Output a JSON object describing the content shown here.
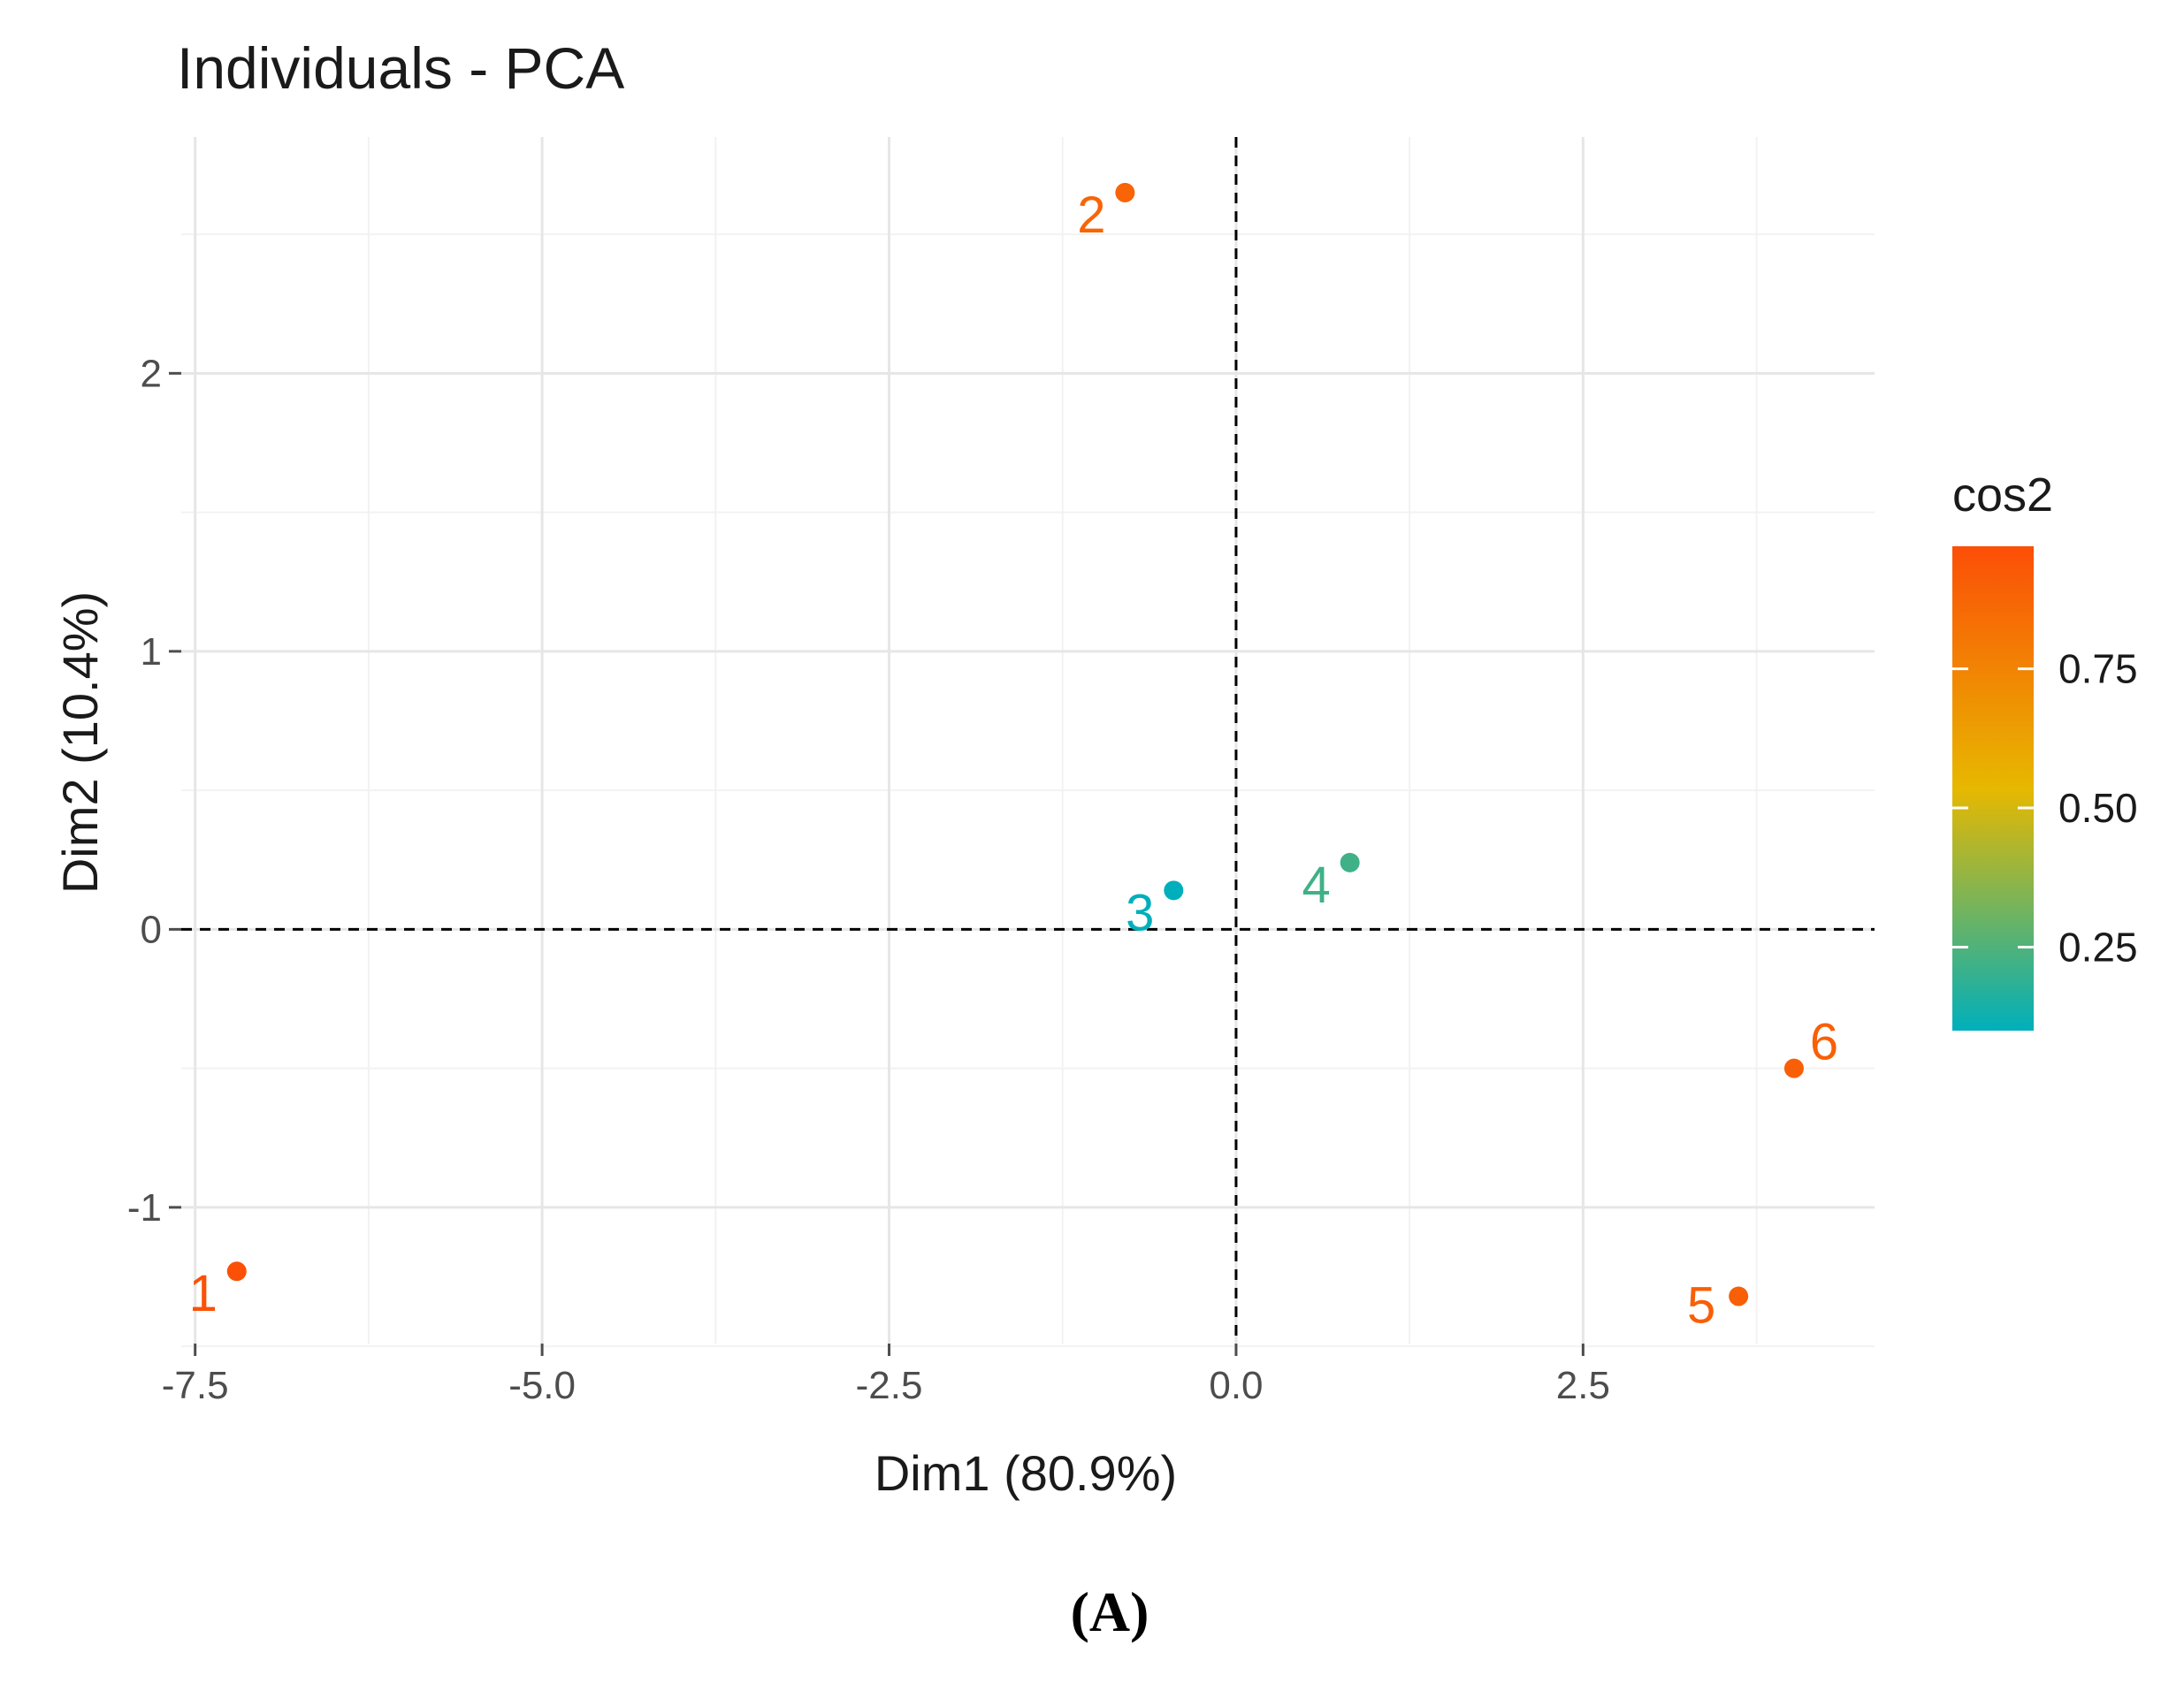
{
  "caption": "(A)",
  "chart_data": {
    "type": "scatter",
    "title": "Individuals - PCA",
    "xlabel": "Dim1 (80.9%)",
    "ylabel": "Dim2 (10.4%)",
    "xlim": [
      -7.6,
      4.6
    ],
    "ylim": [
      -1.49,
      2.85
    ],
    "x_ticks": [
      -7.5,
      -5.0,
      -2.5,
      0.0,
      2.5
    ],
    "x_tick_labels": [
      "-7.5",
      "-5.0",
      "-2.5",
      "0.0",
      "2.5"
    ],
    "y_ticks": [
      -1,
      0,
      1,
      2
    ],
    "y_tick_labels": [
      "-1",
      "0",
      "1",
      "2"
    ],
    "grid": true,
    "reference_lines": {
      "x": 0,
      "y": 0,
      "style": "dashed"
    },
    "points": [
      {
        "label": "1",
        "x": -7.2,
        "y": -1.23,
        "cos2": 0.96
      },
      {
        "label": "2",
        "x": -0.8,
        "y": 2.65,
        "cos2": 0.88
      },
      {
        "label": "3",
        "x": -0.45,
        "y": 0.14,
        "cos2": 0.1
      },
      {
        "label": "4",
        "x": 0.82,
        "y": 0.24,
        "cos2": 0.22
      },
      {
        "label": "5",
        "x": 3.62,
        "y": -1.32,
        "cos2": 0.9
      },
      {
        "label": "6",
        "x": 4.02,
        "y": -0.5,
        "cos2": 0.9
      }
    ],
    "legend": {
      "title": "cos2",
      "position": "right",
      "range": [
        0.1,
        0.97
      ],
      "ticks": [
        0.25,
        0.5,
        0.75
      ],
      "tick_labels": [
        "0.25",
        "0.50",
        "0.75"
      ],
      "gradient": [
        "#00AFBB",
        "#E7B800",
        "#FC4E07"
      ]
    }
  }
}
